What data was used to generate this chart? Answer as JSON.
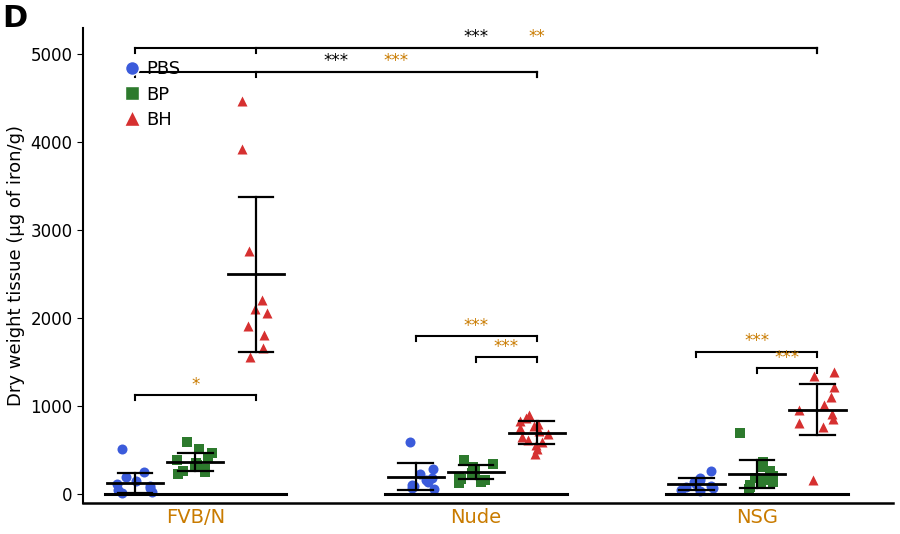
{
  "panel_label": "D",
  "ylabel": "Dry weight tissue (μg of iron/g)",
  "ylim": [
    -100,
    5300
  ],
  "yticks": [
    0,
    1000,
    2000,
    3000,
    4000,
    5000
  ],
  "groups": [
    "FVB/N",
    "Nude",
    "NSG"
  ],
  "conditions": [
    "PBS",
    "BP",
    "BH"
  ],
  "colors": {
    "PBS": "#3b5bdb",
    "BP": "#2d7a2d",
    "BH": "#d63030"
  },
  "markers": {
    "PBS": "o",
    "BP": "s",
    "BH": "^"
  },
  "group_label_color": "#c97b00",
  "sig_color_orange": "#c97b00",
  "sig_color_black": "black",
  "data": {
    "FVB/N": {
      "PBS": {
        "points": [
          520,
          250,
          200,
          150,
          120,
          90,
          70,
          50,
          30,
          20
        ],
        "mean": 130,
        "sd": 110
      },
      "BP": {
        "points": [
          600,
          520,
          470,
          430,
          390,
          360,
          330,
          310,
          290,
          270,
          250,
          230
        ],
        "mean": 370,
        "sd": 100
      },
      "BH": {
        "points": [
          4470,
          3920,
          2760,
          2210,
          2110,
          2060,
          1910,
          1810,
          1660,
          1560
        ],
        "mean": 2500,
        "sd": 880
      }
    },
    "Nude": {
      "PBS": {
        "points": [
          600,
          290,
          230,
          190,
          160,
          140,
          110,
          90,
          70,
          60
        ],
        "mean": 200,
        "sd": 155
      },
      "BP": {
        "points": [
          390,
          350,
          310,
          280,
          260,
          240,
          220,
          200,
          180,
          160,
          145,
          130
        ],
        "mean": 255,
        "sd": 75
      },
      "BH": {
        "points": [
          900,
          870,
          830,
          800,
          775,
          750,
          720,
          690,
          650,
          620,
          590,
          560,
          510,
          460
        ],
        "mean": 700,
        "sd": 130
      }
    },
    "NSG": {
      "PBS": {
        "points": [
          260,
          190,
          160,
          140,
          120,
          100,
          85,
          75,
          55,
          40
        ],
        "mean": 120,
        "sd": 65
      },
      "BP": {
        "points": [
          700,
          370,
          310,
          260,
          210,
          185,
          165,
          145,
          125,
          105,
          85,
          65
        ],
        "mean": 230,
        "sd": 160
      },
      "BH": {
        "points": [
          1390,
          1340,
          1220,
          1110,
          1010,
          960,
          910,
          860,
          810,
          760,
          160
        ],
        "mean": 960,
        "sd": 290
      }
    }
  },
  "background_color": "white",
  "label_fontsize": 13,
  "tick_fontsize": 12,
  "legend_fontsize": 13,
  "group_label_fontsize": 14,
  "panel_fontsize": 22,
  "group_positions": [
    0.42,
    1.72,
    3.02
  ],
  "cond_offsets": [
    -0.28,
    0.0,
    0.28
  ],
  "brackets": [
    {
      "x1g": 0,
      "x1c": 0,
      "x2g": 2,
      "x2c": 2,
      "y": 5070,
      "label": "***",
      "color": "black",
      "tickdown": 60
    },
    {
      "x1g": 0,
      "x1c": 0,
      "x2g": 1,
      "x2c": 2,
      "y": 4800,
      "label": "***",
      "color": "black",
      "tickdown": 60
    },
    {
      "x1g": 0,
      "x1c": 2,
      "x2g": 2,
      "x2c": 2,
      "y": 5070,
      "label": "**",
      "color": "#c97b00",
      "tickdown": 60
    },
    {
      "x1g": 0,
      "x1c": 2,
      "x2g": 1,
      "x2c": 2,
      "y": 4800,
      "label": "***",
      "color": "#c97b00",
      "tickdown": 60
    },
    {
      "x1g": 0,
      "x1c": 0,
      "x2g": 0,
      "x2c": 2,
      "y": 1130,
      "label": "*",
      "color": "#c97b00",
      "tickdown": 55
    },
    {
      "x1g": 1,
      "x1c": 0,
      "x2g": 1,
      "x2c": 2,
      "y": 1800,
      "label": "***",
      "color": "#c97b00",
      "tickdown": 55
    },
    {
      "x1g": 1,
      "x1c": 1,
      "x2g": 1,
      "x2c": 2,
      "y": 1560,
      "label": "***",
      "color": "#c97b00",
      "tickdown": 55
    },
    {
      "x1g": 2,
      "x1c": 0,
      "x2g": 2,
      "x2c": 2,
      "y": 1620,
      "label": "***",
      "color": "#c97b00",
      "tickdown": 55
    },
    {
      "x1g": 2,
      "x1c": 1,
      "x2g": 2,
      "x2c": 2,
      "y": 1430,
      "label": "***",
      "color": "#c97b00",
      "tickdown": 55
    }
  ]
}
